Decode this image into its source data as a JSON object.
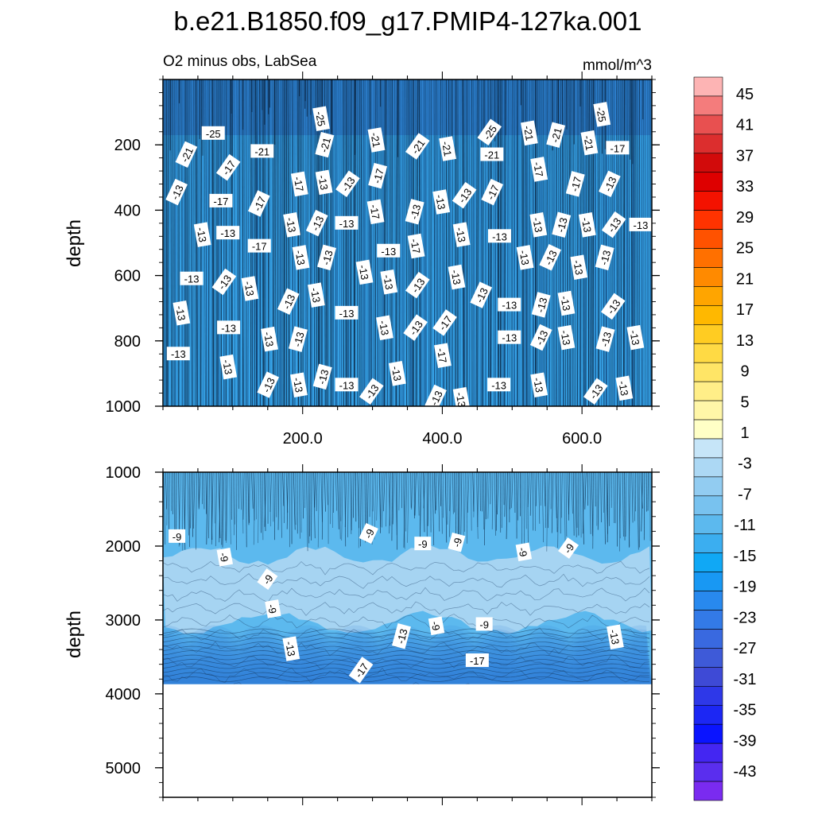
{
  "title": "b.e21.B1850.f09_g17.PMIP4-127ka.001",
  "subtitle_left": "O2 minus obs, LabSea",
  "subtitle_right": "mmol/m^3",
  "colors": {
    "bg_top": "#36A2E6",
    "bg_bottom_light": "#A6D4F2",
    "bg_bottom_mid": "#5CB9EE",
    "bg_bottom_deep": "#2F7FD8"
  },
  "chart_data": [
    {
      "type": "contour",
      "name": "upper-panel",
      "ylabel": "depth",
      "ylim": [
        0,
        1000
      ],
      "xlim": [
        0,
        700
      ],
      "y_ticks": [
        "200",
        "400",
        "600",
        "800",
        "1000"
      ],
      "y_tick_values": [
        200,
        400,
        600,
        800,
        1000
      ],
      "x_ticks": [
        "200.0",
        "400.0",
        "600.0"
      ],
      "x_tick_values": [
        200,
        400,
        600
      ],
      "contour_labels": [
        {
          "text": "-25",
          "x": 72,
          "y": 165
        },
        {
          "text": "-25",
          "x": 226,
          "y": 120
        },
        {
          "text": "-25",
          "x": 468,
          "y": 162
        },
        {
          "text": "-25",
          "x": 628,
          "y": 107
        },
        {
          "text": "-21",
          "x": 34,
          "y": 230
        },
        {
          "text": "-21",
          "x": 142,
          "y": 220
        },
        {
          "text": "-21",
          "x": 232,
          "y": 200
        },
        {
          "text": "-21",
          "x": 305,
          "y": 185
        },
        {
          "text": "-21",
          "x": 365,
          "y": 205
        },
        {
          "text": "-21",
          "x": 407,
          "y": 212
        },
        {
          "text": "-21",
          "x": 471,
          "y": 230
        },
        {
          "text": "-21",
          "x": 524,
          "y": 164
        },
        {
          "text": "-21",
          "x": 563,
          "y": 170
        },
        {
          "text": "-21",
          "x": 610,
          "y": 194
        },
        {
          "text": "-17",
          "x": 94,
          "y": 270
        },
        {
          "text": "-17",
          "x": 83,
          "y": 372
        },
        {
          "text": "-17",
          "x": 138,
          "y": 380
        },
        {
          "text": "-17",
          "x": 195,
          "y": 320
        },
        {
          "text": "-17",
          "x": 308,
          "y": 295
        },
        {
          "text": "-17",
          "x": 304,
          "y": 405
        },
        {
          "text": "-17",
          "x": 138,
          "y": 510
        },
        {
          "text": "-17",
          "x": 362,
          "y": 510
        },
        {
          "text": "-17",
          "x": 472,
          "y": 345
        },
        {
          "text": "-17",
          "x": 538,
          "y": 275
        },
        {
          "text": "-17",
          "x": 591,
          "y": 320
        },
        {
          "text": "-17",
          "x": 651,
          "y": 210
        },
        {
          "text": "-17",
          "x": 404,
          "y": 745
        },
        {
          "text": "-17",
          "x": 400,
          "y": 845
        },
        {
          "text": "-13",
          "x": 20,
          "y": 345
        },
        {
          "text": "-13",
          "x": 56,
          "y": 475
        },
        {
          "text": "-13",
          "x": 93,
          "y": 470
        },
        {
          "text": "-13",
          "x": 230,
          "y": 315
        },
        {
          "text": "-13",
          "x": 265,
          "y": 320
        },
        {
          "text": "-13",
          "x": 184,
          "y": 445
        },
        {
          "text": "-13",
          "x": 221,
          "y": 440
        },
        {
          "text": "-13",
          "x": 263,
          "y": 440
        },
        {
          "text": "-13",
          "x": 361,
          "y": 405
        },
        {
          "text": "-13",
          "x": 398,
          "y": 375
        },
        {
          "text": "-13",
          "x": 432,
          "y": 355
        },
        {
          "text": "-13",
          "x": 427,
          "y": 475
        },
        {
          "text": "-13",
          "x": 482,
          "y": 480
        },
        {
          "text": "-13",
          "x": 537,
          "y": 445
        },
        {
          "text": "-13",
          "x": 571,
          "y": 445
        },
        {
          "text": "-13",
          "x": 607,
          "y": 445
        },
        {
          "text": "-13",
          "x": 646,
          "y": 445
        },
        {
          "text": "-13",
          "x": 684,
          "y": 445
        },
        {
          "text": "-13",
          "x": 640,
          "y": 320
        },
        {
          "text": "-13",
          "x": 197,
          "y": 545
        },
        {
          "text": "-13",
          "x": 235,
          "y": 545
        },
        {
          "text": "-13",
          "x": 288,
          "y": 590
        },
        {
          "text": "-13",
          "x": 323,
          "y": 525
        },
        {
          "text": "-13",
          "x": 518,
          "y": 545
        },
        {
          "text": "-13",
          "x": 555,
          "y": 545
        },
        {
          "text": "-13",
          "x": 595,
          "y": 575
        },
        {
          "text": "-13",
          "x": 633,
          "y": 545
        },
        {
          "text": "-13",
          "x": 41,
          "y": 610
        },
        {
          "text": "-13",
          "x": 88,
          "y": 620
        },
        {
          "text": "-13",
          "x": 124,
          "y": 640
        },
        {
          "text": "-13",
          "x": 180,
          "y": 680
        },
        {
          "text": "-13",
          "x": 219,
          "y": 660
        },
        {
          "text": "-13",
          "x": 263,
          "y": 715
        },
        {
          "text": "-13",
          "x": 323,
          "y": 620
        },
        {
          "text": "-13",
          "x": 365,
          "y": 630
        },
        {
          "text": "-13",
          "x": 420,
          "y": 605
        },
        {
          "text": "-13",
          "x": 456,
          "y": 660
        },
        {
          "text": "-13",
          "x": 496,
          "y": 690
        },
        {
          "text": "-13",
          "x": 542,
          "y": 690
        },
        {
          "text": "-13",
          "x": 577,
          "y": 685
        },
        {
          "text": "-13",
          "x": 645,
          "y": 695
        },
        {
          "text": "-13",
          "x": 26,
          "y": 715
        },
        {
          "text": "-13",
          "x": 94,
          "y": 760
        },
        {
          "text": "-13",
          "x": 152,
          "y": 795
        },
        {
          "text": "-13",
          "x": 194,
          "y": 795
        },
        {
          "text": "-13",
          "x": 317,
          "y": 760
        },
        {
          "text": "-13",
          "x": 362,
          "y": 760
        },
        {
          "text": "-13",
          "x": 496,
          "y": 790
        },
        {
          "text": "-13",
          "x": 542,
          "y": 790
        },
        {
          "text": "-13",
          "x": 577,
          "y": 790
        },
        {
          "text": "-13",
          "x": 634,
          "y": 795
        },
        {
          "text": "-13",
          "x": 676,
          "y": 790
        },
        {
          "text": "-13",
          "x": 22,
          "y": 840
        },
        {
          "text": "-13",
          "x": 93,
          "y": 880
        },
        {
          "text": "-13",
          "x": 151,
          "y": 935
        },
        {
          "text": "-13",
          "x": 194,
          "y": 935
        },
        {
          "text": "-13",
          "x": 229,
          "y": 910
        },
        {
          "text": "-13",
          "x": 263,
          "y": 935
        },
        {
          "text": "-13",
          "x": 299,
          "y": 955
        },
        {
          "text": "-13",
          "x": 335,
          "y": 900
        },
        {
          "text": "-13",
          "x": 391,
          "y": 975
        },
        {
          "text": "-13",
          "x": 427,
          "y": 980
        },
        {
          "text": "-13",
          "x": 481,
          "y": 935
        },
        {
          "text": "-13",
          "x": 538,
          "y": 935
        },
        {
          "text": "-13",
          "x": 620,
          "y": 955
        },
        {
          "text": "-13",
          "x": 660,
          "y": 945
        }
      ]
    },
    {
      "type": "contour",
      "name": "lower-panel",
      "ylabel": "depth",
      "ylim": [
        1000,
        5400
      ],
      "xlim": [
        0,
        700
      ],
      "y_ticks": [
        "1000",
        "2000",
        "3000",
        "4000",
        "5000"
      ],
      "y_tick_values": [
        1000,
        2000,
        3000,
        4000,
        5000
      ],
      "data_bottom_depth": 3870,
      "contour_labels": [
        {
          "text": "-9",
          "x": 20,
          "y": 1870
        },
        {
          "text": "-9",
          "x": 88,
          "y": 2150
        },
        {
          "text": "-9",
          "x": 150,
          "y": 2450
        },
        {
          "text": "-9",
          "x": 157,
          "y": 2850
        },
        {
          "text": "-9",
          "x": 295,
          "y": 1830
        },
        {
          "text": "-9",
          "x": 372,
          "y": 1970
        },
        {
          "text": "-9",
          "x": 421,
          "y": 1950
        },
        {
          "text": "-9",
          "x": 516,
          "y": 2080
        },
        {
          "text": "-9",
          "x": 581,
          "y": 2030
        },
        {
          "text": "-9",
          "x": 391,
          "y": 3080
        },
        {
          "text": "-9",
          "x": 460,
          "y": 3060
        },
        {
          "text": "-13",
          "x": 183,
          "y": 3390
        },
        {
          "text": "-13",
          "x": 342,
          "y": 3220
        },
        {
          "text": "-13",
          "x": 647,
          "y": 3230
        },
        {
          "text": "-17",
          "x": 284,
          "y": 3680
        },
        {
          "text": "-17",
          "x": 450,
          "y": 3550
        }
      ]
    }
  ],
  "colorbar": {
    "labels": [
      "45",
      "41",
      "37",
      "33",
      "29",
      "25",
      "21",
      "17",
      "13",
      "9",
      "5",
      "1",
      "-3",
      "-7",
      "-11",
      "-15",
      "-19",
      "-23",
      "-27",
      "-31",
      "-35",
      "-39",
      "-43"
    ],
    "colors": [
      "#FDB4B4",
      "#F47C7C",
      "#E85050",
      "#DC2E2E",
      "#D20B0B",
      "#DE0000",
      "#F41200",
      "#FF3300",
      "#FF5200",
      "#FF7000",
      "#FF8A00",
      "#FFA500",
      "#FFB800",
      "#FFCC22",
      "#FFDA44",
      "#FFE566",
      "#FFEE88",
      "#FFF6A8",
      "#FFFFC6",
      "#C6E5F8",
      "#ACD8F4",
      "#92CCF1",
      "#78C2EF",
      "#5CB9EE",
      "#3BAEF0",
      "#10A8F5",
      "#1898F3",
      "#2889EE",
      "#337AE7",
      "#3969E0",
      "#3E5AD8",
      "#3E4AD6",
      "#2E38E8",
      "#1C27F4",
      "#0A14FF",
      "#4426F2",
      "#5A2EEE",
      "#7A2BF0"
    ]
  }
}
